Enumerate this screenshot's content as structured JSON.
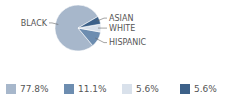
{
  "chart_data": {
    "type": "pie",
    "categories": [
      "BLACK",
      "HISPANIC",
      "WHITE",
      "ASIAN"
    ],
    "values": [
      77.8,
      11.1,
      5.6,
      5.6
    ],
    "value_labels": [
      "77.8%",
      "11.1%",
      "5.6%",
      "5.6%"
    ],
    "colors": [
      "#a7b7cb",
      "#6d8db0",
      "#d9e1eb",
      "#3d6189"
    ],
    "legend": "bottom"
  }
}
